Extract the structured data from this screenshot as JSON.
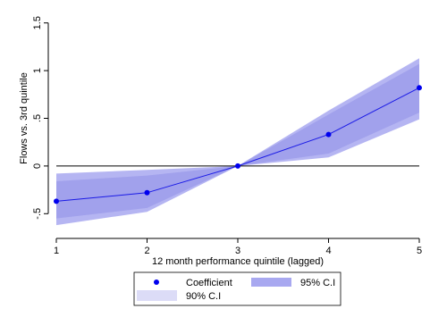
{
  "chart_data": {
    "type": "line",
    "title": "",
    "xlabel": "12 month performance quintile (lagged)",
    "ylabel": "Flows vs. 3rd quintile",
    "x": [
      1,
      2,
      3,
      4,
      5
    ],
    "xticks": [
      "1",
      "2",
      "3",
      "4",
      "5"
    ],
    "xlim": [
      1,
      5
    ],
    "yticks": [
      "-.5",
      "0",
      ".5",
      "1",
      "1.5"
    ],
    "ytick_values": [
      -0.5,
      0,
      0.5,
      1,
      1.5
    ],
    "ylim": [
      -0.75,
      1.6
    ],
    "reference_line_y": 0,
    "grid": false,
    "legend_position": "bottom",
    "series": [
      {
        "name": "Coefficient",
        "values": [
          -0.37,
          -0.28,
          0.0,
          0.33,
          0.82
        ]
      }
    ],
    "bands": [
      {
        "name": "95% C.I",
        "lower": [
          -0.62,
          -0.48,
          0.0,
          0.09,
          0.49
        ],
        "upper": [
          -0.08,
          -0.04,
          0.0,
          0.58,
          1.13
        ]
      },
      {
        "name": "90% C.I",
        "lower": [
          -0.55,
          -0.44,
          0.0,
          0.13,
          0.56
        ],
        "upper": [
          -0.16,
          -0.1,
          0.0,
          0.54,
          1.07
        ]
      }
    ],
    "legend": {
      "coefficient_label": "Coefficient",
      "ci95_label": "95% C.I",
      "ci90_label": "90% C.I"
    },
    "colors": {
      "line": "#1a1ae6",
      "marker": "#0000ee",
      "ci95": "#a8a8f0",
      "ci90": "#9090e8",
      "legend_ci90": "#dcdcf7",
      "zero_line": "#000000",
      "axis": "#000000"
    }
  }
}
